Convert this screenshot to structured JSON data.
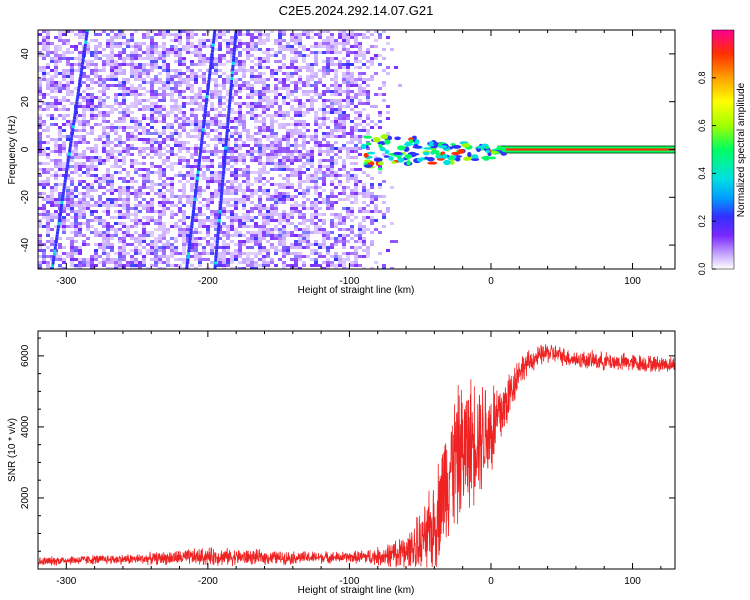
{
  "figure": {
    "title": "C2E5.2024.292.14.07.G21"
  },
  "chart_data": [
    {
      "type": "heatmap",
      "title": "C2E5.2024.292.14.07.G21",
      "xlabel": "Height of straight line (km)",
      "ylabel": "Frequency (Hz)",
      "xlim": [
        -320,
        130
      ],
      "ylim": [
        -50,
        50
      ],
      "x_ticks": [
        -300,
        -200,
        -100,
        0,
        100
      ],
      "y_ticks": [
        -40,
        -20,
        0,
        20,
        40
      ],
      "grid": false,
      "colorbar": {
        "label": "Normalized spectral amplitude",
        "range": [
          0,
          1
        ],
        "ticks": [
          0.0,
          0.2,
          0.4,
          0.6,
          0.8
        ],
        "colormap": [
          "#ffffff",
          "#c8a8ff",
          "#7a28ff",
          "#3030ff",
          "#00a0ff",
          "#00e0e0",
          "#00ff60",
          "#a0ff00",
          "#ffff00",
          "#ffa000",
          "#ff3000",
          "#ff0090"
        ]
      },
      "description_data": {
        "noise_region_x": [
          -320,
          -65
        ],
        "signal_line_x": [
          -90,
          130
        ],
        "signal_line_frequency": 0,
        "signal_peak_amplitude": 0.85
      }
    },
    {
      "type": "line",
      "xlabel": "Height of straight line (km)",
      "ylabel": "SNR (10 * v/v)",
      "xlim": [
        -320,
        130
      ],
      "ylim": [
        0,
        6700
      ],
      "x_ticks": [
        -300,
        -200,
        -100,
        0,
        100
      ],
      "y_ticks": [
        2000,
        4000,
        6000
      ],
      "grid": false,
      "color": "#ee2222",
      "series": [
        {
          "x": [
            -320,
            -300,
            -250,
            -200,
            -150,
            -100,
            -80,
            -60,
            -50,
            -40,
            -30,
            -20,
            -10,
            0,
            10,
            20,
            30,
            40,
            50,
            60,
            80,
            100,
            130
          ],
          "values": [
            200,
            250,
            280,
            350,
            320,
            330,
            350,
            450,
            700,
            1200,
            2800,
            3300,
            3800,
            3900,
            4600,
            5600,
            5900,
            6100,
            6000,
            5900,
            5850,
            5800,
            5750
          ],
          "spread": [
            150,
            150,
            170,
            300,
            220,
            180,
            300,
            600,
            1000,
            1500,
            2200,
            2300,
            2000,
            1800,
            1000,
            500,
            350,
            350,
            300,
            300,
            300,
            300,
            250
          ]
        }
      ]
    }
  ]
}
